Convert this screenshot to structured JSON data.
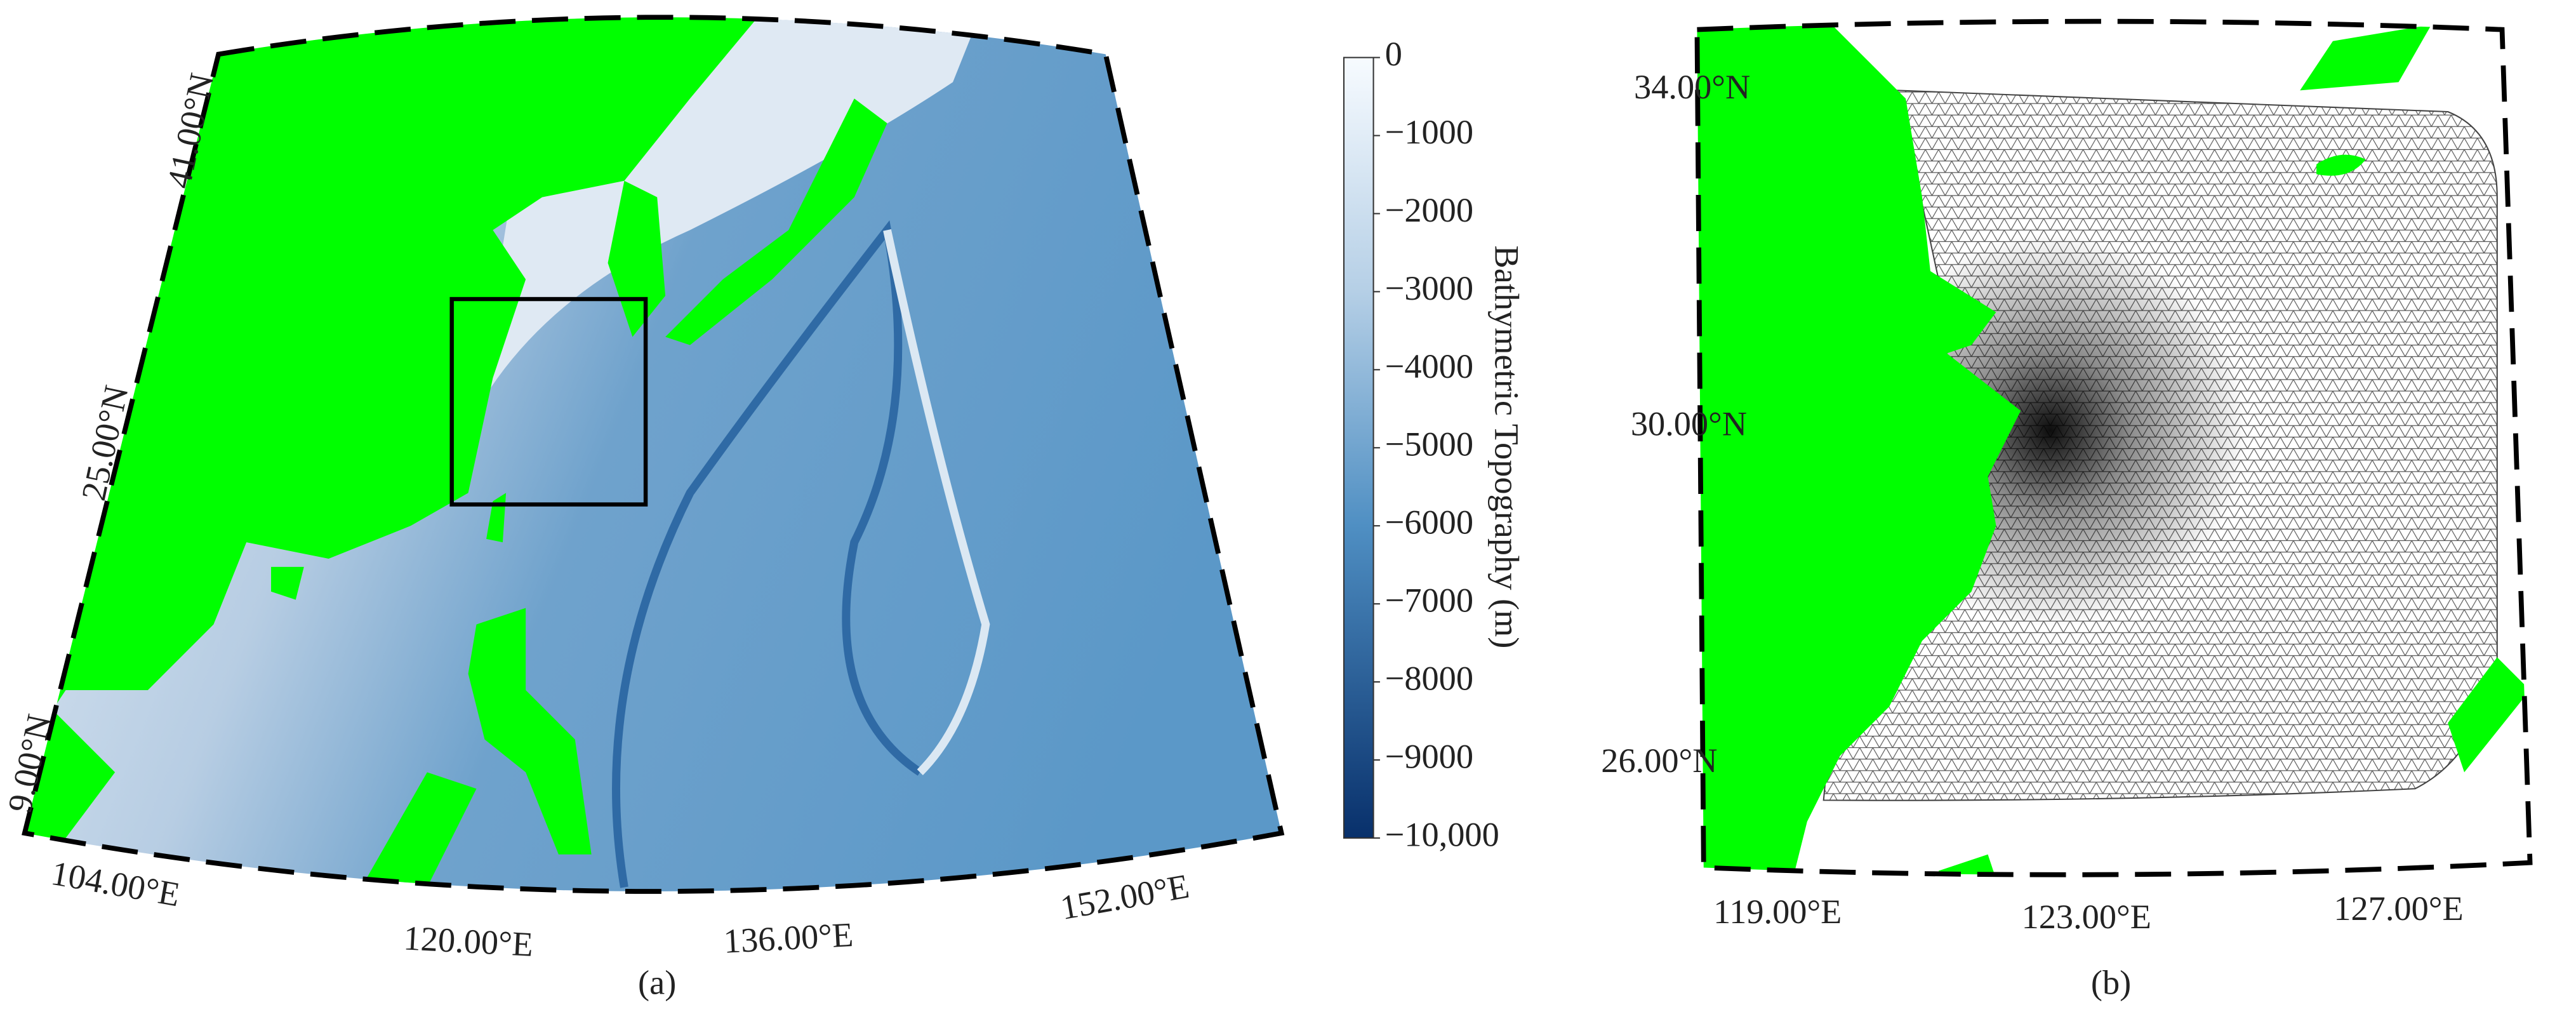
{
  "panel_a": {
    "lat_labels": [
      "41.00°N",
      "25.00°N",
      "9.00°N"
    ],
    "lon_labels": [
      "104.00°E",
      "120.00°E",
      "136.00°E",
      "152.00°E"
    ],
    "caption": "(a)"
  },
  "colorbar": {
    "label": "Bathymetric Topography (m)",
    "lim": [
      0,
      -10000
    ],
    "ticks": [
      {
        "value": 0,
        "label": "0"
      },
      {
        "value": -1000,
        "label": "−1000"
      },
      {
        "value": -2000,
        "label": "−2000"
      },
      {
        "value": -3000,
        "label": "−3000"
      },
      {
        "value": -4000,
        "label": "−4000"
      },
      {
        "value": -5000,
        "label": "−5000"
      },
      {
        "value": -6000,
        "label": "−6000"
      },
      {
        "value": -7000,
        "label": "−7000"
      },
      {
        "value": -8000,
        "label": "−8000"
      },
      {
        "value": -9000,
        "label": "−9000"
      },
      {
        "value": -10000,
        "label": "−10,000"
      }
    ]
  },
  "panel_b": {
    "lat_labels": [
      "34.00°N",
      "30.00°N",
      "26.00°N"
    ],
    "lon_labels": [
      "119.00°E",
      "123.00°E",
      "127.00°E"
    ],
    "caption": "(b)"
  }
}
